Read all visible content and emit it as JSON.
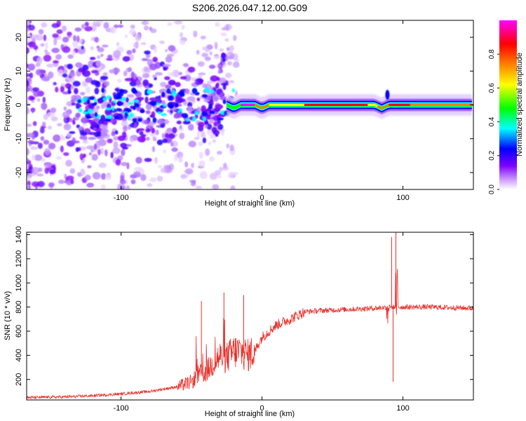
{
  "figure_title": "S206.2026.047.12.00.G09",
  "chart_data": [
    {
      "type": "heatmap",
      "name": "spectrogram",
      "xlabel": "Height of straight line (km)",
      "ylabel": "Frequency (Hz)",
      "xlim": [
        -167,
        150
      ],
      "ylim": [
        -25,
        25
      ],
      "xticks": [
        -100,
        0,
        100
      ],
      "xtick_labels": [
        "-100",
        "0",
        "100"
      ],
      "yticks": [
        -20,
        -10,
        0,
        10,
        20
      ],
      "ytick_labels": [
        "-20",
        "-10",
        "0",
        "10",
        "20"
      ],
      "colorbar": {
        "label": "Normalized spectral amplitude",
        "range": [
          0.0,
          1.0
        ],
        "ticks": [
          0.0,
          0.2,
          0.4,
          0.6,
          0.8
        ],
        "tick_labels": [
          "0.0",
          "0.2",
          "0.4",
          "0.6",
          "0.8"
        ],
        "colormap": [
          "#ffffff",
          "#8000ff",
          "#0000ff",
          "#00ffff",
          "#00ff00",
          "#ffff00",
          "#ff8000",
          "#ff0000",
          "#ff00ff"
        ]
      },
      "ridge": {
        "x": [
          -30,
          -25,
          -20,
          -15,
          -10,
          -5,
          0,
          5,
          10,
          20,
          40,
          60,
          80,
          85,
          90,
          95,
          100,
          120,
          150
        ],
        "freq": [
          0,
          0,
          -1,
          0,
          0,
          0,
          -1,
          0,
          0,
          0,
          0,
          0,
          0,
          -1,
          0,
          0,
          0,
          0,
          0
        ]
      }
    },
    {
      "type": "line",
      "name": "snr",
      "xlabel": "Height of straight line (km)",
      "ylabel": "SNR (10 * v/v)",
      "xlim": [
        -167,
        150
      ],
      "ylim": [
        30,
        1420
      ],
      "xticks": [
        -100,
        0,
        100
      ],
      "xtick_labels": [
        "-100",
        "0",
        "100"
      ],
      "yticks": [
        200,
        400,
        600,
        800,
        1000,
        1200,
        1400
      ],
      "ytick_labels": [
        "200",
        "400",
        "600",
        "800",
        "1000",
        "1200",
        "1400"
      ],
      "color": "#e8302a",
      "envelope": {
        "x": [
          -167,
          -140,
          -120,
          -100,
          -80,
          -70,
          -60,
          -50,
          -45,
          -40,
          -35,
          -30,
          -25,
          -20,
          -15,
          -10,
          -5,
          0,
          10,
          20,
          30,
          40,
          60,
          80,
          90,
          100,
          120,
          150
        ],
        "y": [
          50,
          55,
          65,
          80,
          100,
          120,
          140,
          180,
          240,
          260,
          330,
          390,
          380,
          430,
          430,
          400,
          440,
          550,
          650,
          700,
          760,
          770,
          780,
          790,
          800,
          800,
          800,
          790
        ]
      },
      "spikes": [
        {
          "x": -43,
          "y": 850
        },
        {
          "x": -27,
          "y": 920
        },
        {
          "x": -13,
          "y": 900
        },
        {
          "x": 92,
          "y": 1380
        },
        {
          "x": 95,
          "y": 1420
        },
        {
          "x": 93,
          "y": 180
        }
      ]
    }
  ]
}
